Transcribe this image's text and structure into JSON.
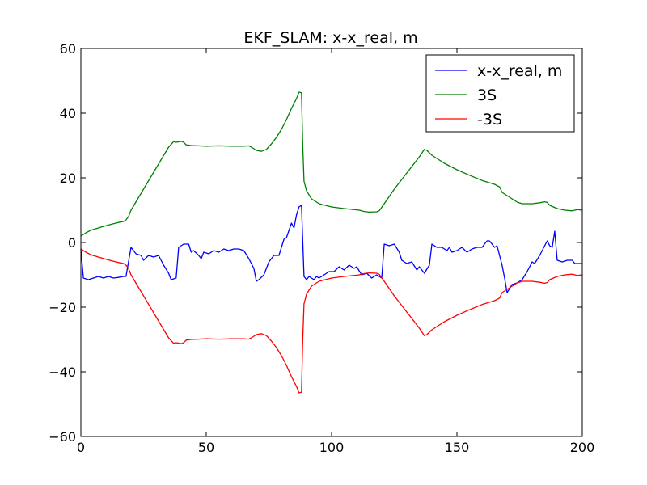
{
  "chart_data": {
    "type": "line",
    "title": "EKF_SLAM: x-x_real, m",
    "xlabel": "",
    "ylabel": "",
    "xlim": [
      0,
      200
    ],
    "ylim": [
      -60,
      60
    ],
    "xticks": [
      0,
      50,
      100,
      150,
      200
    ],
    "yticks": [
      -60,
      -40,
      -20,
      0,
      20,
      40,
      60
    ],
    "grid": false,
    "legend_position": "top-right",
    "series": [
      {
        "name": "x-x_real, m",
        "color": "#0000ff",
        "points": [
          [
            0,
            -2
          ],
          [
            1,
            -11
          ],
          [
            3,
            -11.5
          ],
          [
            5,
            -11
          ],
          [
            7,
            -10.5
          ],
          [
            9,
            -11
          ],
          [
            11,
            -10.5
          ],
          [
            13,
            -11
          ],
          [
            15,
            -10.8
          ],
          [
            17,
            -10.5
          ],
          [
            18,
            -10.5
          ],
          [
            20,
            -1.5
          ],
          [
            22,
            -3.5
          ],
          [
            24,
            -4
          ],
          [
            25,
            -5.5
          ],
          [
            27,
            -4
          ],
          [
            29,
            -4.5
          ],
          [
            31,
            -4
          ],
          [
            33,
            -7
          ],
          [
            35,
            -9.5
          ],
          [
            36,
            -11.5
          ],
          [
            38,
            -11
          ],
          [
            39,
            -1.5
          ],
          [
            41,
            -0.5
          ],
          [
            43,
            -0.5
          ],
          [
            44,
            -3
          ],
          [
            45,
            -2.5
          ],
          [
            47,
            -4
          ],
          [
            48,
            -5
          ],
          [
            49,
            -3
          ],
          [
            51,
            -3.5
          ],
          [
            53,
            -2.5
          ],
          [
            55,
            -3
          ],
          [
            57,
            -2
          ],
          [
            59,
            -2.5
          ],
          [
            61,
            -2
          ],
          [
            63,
            -2
          ],
          [
            65,
            -2.5
          ],
          [
            67,
            -5
          ],
          [
            69,
            -8
          ],
          [
            70,
            -12
          ],
          [
            71,
            -11.5
          ],
          [
            73,
            -10
          ],
          [
            74,
            -8
          ],
          [
            75,
            -6
          ],
          [
            77,
            -4
          ],
          [
            79,
            -4
          ],
          [
            81,
            1
          ],
          [
            82,
            1.5
          ],
          [
            84,
            6
          ],
          [
            85,
            4.5
          ],
          [
            86,
            8.5
          ],
          [
            87,
            11
          ],
          [
            88,
            11.5
          ],
          [
            89,
            -10.5
          ],
          [
            90,
            -11.5
          ],
          [
            91,
            -10.5
          ],
          [
            93,
            -11.5
          ],
          [
            94,
            -10.5
          ],
          [
            95,
            -11
          ],
          [
            97,
            -10
          ],
          [
            99,
            -9
          ],
          [
            101,
            -9
          ],
          [
            103,
            -7.5
          ],
          [
            105,
            -8.5
          ],
          [
            107,
            -7
          ],
          [
            109,
            -8
          ],
          [
            110,
            -7.5
          ],
          [
            112,
            -10
          ],
          [
            114,
            -9.5
          ],
          [
            116,
            -11
          ],
          [
            118,
            -10
          ],
          [
            120,
            -11
          ],
          [
            121,
            -0.5
          ],
          [
            123,
            -1
          ],
          [
            125,
            -0.5
          ],
          [
            127,
            -3
          ],
          [
            128,
            -5.5
          ],
          [
            130,
            -6.5
          ],
          [
            132,
            -6
          ],
          [
            134,
            -8.5
          ],
          [
            135,
            -7.5
          ],
          [
            137,
            -9.5
          ],
          [
            139,
            -7
          ],
          [
            140,
            -0.5
          ],
          [
            142,
            -1.5
          ],
          [
            144,
            -1.5
          ],
          [
            146,
            -2.5
          ],
          [
            147,
            -1.5
          ],
          [
            148,
            -3
          ],
          [
            150,
            -2.5
          ],
          [
            152,
            -1.5
          ],
          [
            154,
            -3
          ],
          [
            156,
            -2
          ],
          [
            158,
            -1.5
          ],
          [
            160,
            -1.5
          ],
          [
            162,
            0.5
          ],
          [
            163,
            0.5
          ],
          [
            165,
            -1.5
          ],
          [
            166,
            -1
          ],
          [
            168,
            -7
          ],
          [
            169,
            -11
          ],
          [
            170,
            -15.5
          ],
          [
            172,
            -13
          ],
          [
            174,
            -12.5
          ],
          [
            176,
            -11.5
          ],
          [
            178,
            -9
          ],
          [
            180,
            -6
          ],
          [
            181,
            -6.5
          ],
          [
            183,
            -4
          ],
          [
            184,
            -2.5
          ],
          [
            186,
            0.5
          ],
          [
            187,
            -1
          ],
          [
            188,
            -1.5
          ],
          [
            189,
            3.5
          ],
          [
            190,
            -5.5
          ],
          [
            192,
            -6
          ],
          [
            194,
            -5.5
          ],
          [
            196,
            -5.5
          ],
          [
            197,
            -6.5
          ],
          [
            200,
            -6.5
          ]
        ]
      },
      {
        "name": "3S",
        "color": "#008000",
        "points": [
          [
            0,
            2
          ],
          [
            2,
            3
          ],
          [
            4,
            3.8
          ],
          [
            7,
            4.5
          ],
          [
            10,
            5.2
          ],
          [
            13,
            5.8
          ],
          [
            15,
            6.2
          ],
          [
            17,
            6.5
          ],
          [
            18,
            7
          ],
          [
            19,
            8
          ],
          [
            20,
            10
          ],
          [
            25,
            16.5
          ],
          [
            30,
            23
          ],
          [
            35,
            29.5
          ],
          [
            37,
            31.2
          ],
          [
            38,
            31
          ],
          [
            40,
            31.3
          ],
          [
            41,
            31
          ],
          [
            42,
            30.2
          ],
          [
            44,
            30
          ],
          [
            50,
            29.8
          ],
          [
            55,
            29.9
          ],
          [
            60,
            29.8
          ],
          [
            65,
            29.8
          ],
          [
            67,
            29.9
          ],
          [
            68,
            29.5
          ],
          [
            70,
            28.5
          ],
          [
            72,
            28.2
          ],
          [
            74,
            28.8
          ],
          [
            76,
            30.5
          ],
          [
            78,
            32.5
          ],
          [
            80,
            35
          ],
          [
            82,
            38
          ],
          [
            84,
            41.5
          ],
          [
            86,
            44.5
          ],
          [
            87,
            46.5
          ],
          [
            88,
            46.3
          ],
          [
            88.5,
            30
          ],
          [
            89,
            19
          ],
          [
            90,
            16
          ],
          [
            92,
            13.5
          ],
          [
            95,
            12
          ],
          [
            100,
            11
          ],
          [
            105,
            10.5
          ],
          [
            110,
            10.1
          ],
          [
            111,
            10
          ],
          [
            113,
            9.6
          ],
          [
            115,
            9.4
          ],
          [
            118,
            9.5
          ],
          [
            119,
            9.8
          ],
          [
            121,
            12
          ],
          [
            125,
            16.5
          ],
          [
            130,
            21.5
          ],
          [
            135,
            26.5
          ],
          [
            137,
            28.8
          ],
          [
            138,
            28.5
          ],
          [
            140,
            27
          ],
          [
            145,
            24.5
          ],
          [
            150,
            22.5
          ],
          [
            155,
            20.8
          ],
          [
            160,
            19.2
          ],
          [
            165,
            18
          ],
          [
            167,
            17.2
          ],
          [
            168,
            15.5
          ],
          [
            170,
            14.5
          ],
          [
            172,
            13.5
          ],
          [
            174,
            12.5
          ],
          [
            176,
            12
          ],
          [
            180,
            12
          ],
          [
            183,
            12.3
          ],
          [
            185,
            12.6
          ],
          [
            186,
            12.4
          ],
          [
            187,
            11.5
          ],
          [
            190,
            10.5
          ],
          [
            193,
            10
          ],
          [
            196,
            9.8
          ],
          [
            198,
            10.2
          ],
          [
            200,
            10
          ]
        ]
      },
      {
        "name": "-3S",
        "color": "#ff0000",
        "points": [
          [
            0,
            -2
          ],
          [
            2,
            -3
          ],
          [
            4,
            -3.8
          ],
          [
            7,
            -4.5
          ],
          [
            10,
            -5.2
          ],
          [
            13,
            -5.8
          ],
          [
            15,
            -6.2
          ],
          [
            17,
            -6.5
          ],
          [
            18,
            -7
          ],
          [
            19,
            -8
          ],
          [
            20,
            -10
          ],
          [
            25,
            -16.5
          ],
          [
            30,
            -23
          ],
          [
            35,
            -29.5
          ],
          [
            37,
            -31.2
          ],
          [
            38,
            -31
          ],
          [
            40,
            -31.3
          ],
          [
            41,
            -31
          ],
          [
            42,
            -30.2
          ],
          [
            44,
            -30
          ],
          [
            50,
            -29.8
          ],
          [
            55,
            -29.9
          ],
          [
            60,
            -29.8
          ],
          [
            65,
            -29.8
          ],
          [
            67,
            -29.9
          ],
          [
            68,
            -29.5
          ],
          [
            70,
            -28.5
          ],
          [
            72,
            -28.2
          ],
          [
            74,
            -28.8
          ],
          [
            76,
            -30.5
          ],
          [
            78,
            -32.5
          ],
          [
            80,
            -35
          ],
          [
            82,
            -38
          ],
          [
            84,
            -41.5
          ],
          [
            86,
            -44.5
          ],
          [
            87,
            -46.5
          ],
          [
            88,
            -46.3
          ],
          [
            88.5,
            -30
          ],
          [
            89,
            -19
          ],
          [
            90,
            -16
          ],
          [
            92,
            -13.5
          ],
          [
            95,
            -12
          ],
          [
            100,
            -11
          ],
          [
            105,
            -10.5
          ],
          [
            110,
            -10.1
          ],
          [
            111,
            -10
          ],
          [
            113,
            -9.6
          ],
          [
            115,
            -9.4
          ],
          [
            118,
            -9.5
          ],
          [
            119,
            -9.8
          ],
          [
            121,
            -12
          ],
          [
            125,
            -16.5
          ],
          [
            130,
            -21.5
          ],
          [
            135,
            -26.5
          ],
          [
            137,
            -28.8
          ],
          [
            138,
            -28.5
          ],
          [
            140,
            -27
          ],
          [
            145,
            -24.5
          ],
          [
            150,
            -22.5
          ],
          [
            155,
            -20.8
          ],
          [
            160,
            -19.2
          ],
          [
            165,
            -18
          ],
          [
            167,
            -17.2
          ],
          [
            168,
            -15.5
          ],
          [
            170,
            -14.5
          ],
          [
            172,
            -13.5
          ],
          [
            174,
            -12.5
          ],
          [
            176,
            -12
          ],
          [
            180,
            -12
          ],
          [
            183,
            -12.3
          ],
          [
            185,
            -12.6
          ],
          [
            186,
            -12.4
          ],
          [
            187,
            -11.5
          ],
          [
            190,
            -10.5
          ],
          [
            193,
            -10
          ],
          [
            196,
            -9.8
          ],
          [
            198,
            -10.2
          ],
          [
            200,
            -10
          ]
        ]
      }
    ]
  }
}
